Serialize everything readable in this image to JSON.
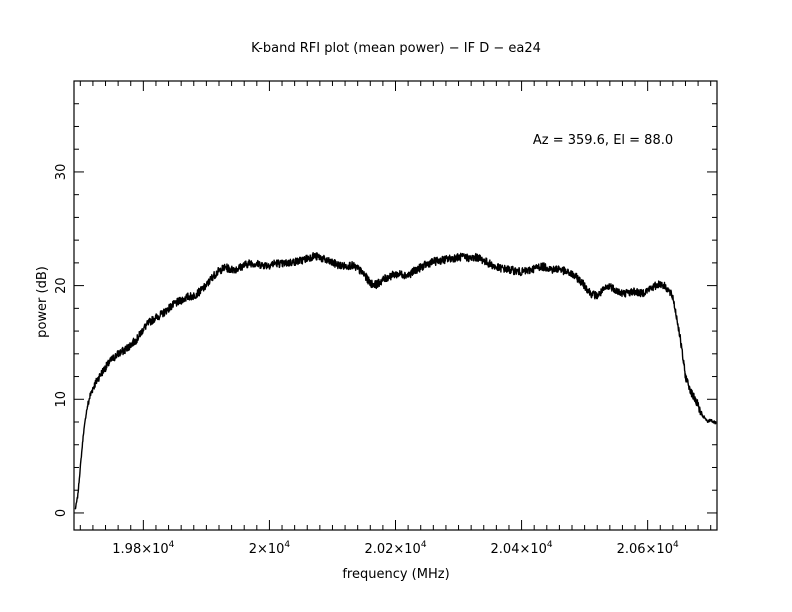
{
  "chart_data": {
    "type": "line",
    "title": "K-band RFI plot (mean power) − IF D − ea24",
    "xlabel": "frequency (MHz)",
    "ylabel": "power (dB)",
    "annotation": "Az = 359.6, El = 88.0",
    "xlim": [
      19690,
      20710
    ],
    "ylim": [
      -1.5,
      38
    ],
    "x_ticks": [
      {
        "value": 19800,
        "mantissa": "1.98×10",
        "exp": "4"
      },
      {
        "value": 20000,
        "mantissa": "2×10",
        "exp": "4"
      },
      {
        "value": 20200,
        "mantissa": "2.02×10",
        "exp": "4"
      },
      {
        "value": 20400,
        "mantissa": "2.04×10",
        "exp": "4"
      },
      {
        "value": 20600,
        "mantissa": "2.06×10",
        "exp": "4"
      }
    ],
    "y_ticks": [
      {
        "value": 0,
        "label": "0"
      },
      {
        "value": 10,
        "label": "10"
      },
      {
        "value": 20,
        "label": "20"
      },
      {
        "value": 30,
        "label": "30"
      }
    ],
    "grid": false,
    "line_color": "#000000",
    "series": [
      {
        "x": [
          19692,
          19696,
          19700,
          19705,
          19710,
          19715,
          19720,
          19730,
          19740,
          19750,
          19760,
          19770,
          19780,
          19790,
          19800,
          19810,
          19820,
          19830,
          19840,
          19850,
          19860,
          19870,
          19880,
          19890,
          19900,
          19910,
          19920,
          19930,
          19940,
          19950,
          19960,
          19970,
          19980,
          19990,
          20000,
          20010,
          20020,
          20030,
          20040,
          20050,
          20060,
          20070,
          20080,
          20090,
          20100,
          20110,
          20120,
          20130,
          20140,
          20150,
          20160,
          20170,
          20180,
          20190,
          20200,
          20210,
          20220,
          20230,
          20240,
          20250,
          20260,
          20270,
          20280,
          20290,
          20300,
          20310,
          20320,
          20330,
          20340,
          20350,
          20360,
          20370,
          20380,
          20390,
          20400,
          20410,
          20420,
          20430,
          20440,
          20450,
          20460,
          20470,
          20480,
          20490,
          20500,
          20510,
          20520,
          20530,
          20540,
          20550,
          20560,
          20570,
          20580,
          20590,
          20600,
          20610,
          20620,
          20630,
          20640,
          20650,
          20660,
          20670,
          20680,
          20685,
          20690,
          20695,
          20700,
          20705,
          20708
        ],
        "y": [
          0.3,
          1.5,
          4.0,
          7.0,
          9.0,
          10.2,
          11.0,
          12.0,
          12.8,
          13.5,
          14.0,
          14.3,
          14.8,
          15.3,
          16.2,
          16.8,
          17.2,
          17.5,
          18.0,
          18.4,
          18.7,
          19.0,
          19.1,
          19.5,
          20.0,
          20.8,
          21.3,
          21.6,
          21.4,
          21.5,
          21.8,
          22.0,
          21.9,
          21.8,
          21.8,
          22.0,
          21.9,
          22.0,
          22.1,
          22.2,
          22.4,
          22.6,
          22.5,
          22.2,
          22.0,
          21.8,
          21.7,
          21.8,
          21.5,
          21.0,
          20.2,
          20.1,
          20.5,
          20.8,
          21.0,
          21.0,
          20.9,
          21.3,
          21.6,
          21.9,
          22.1,
          22.2,
          22.3,
          22.4,
          22.5,
          22.5,
          22.4,
          22.5,
          22.2,
          21.9,
          21.6,
          21.5,
          21.4,
          21.3,
          21.2,
          21.3,
          21.5,
          21.7,
          21.6,
          21.4,
          21.5,
          21.2,
          21.0,
          20.6,
          20.0,
          19.3,
          19.1,
          19.6,
          20.0,
          19.6,
          19.3,
          19.4,
          19.5,
          19.3,
          19.6,
          19.9,
          20.2,
          19.8,
          19.0,
          16.0,
          12.0,
          10.5,
          9.5,
          8.6,
          8.4,
          8.0,
          8.2,
          8.0,
          7.9
        ],
        "noise_db": 0.35
      }
    ]
  }
}
